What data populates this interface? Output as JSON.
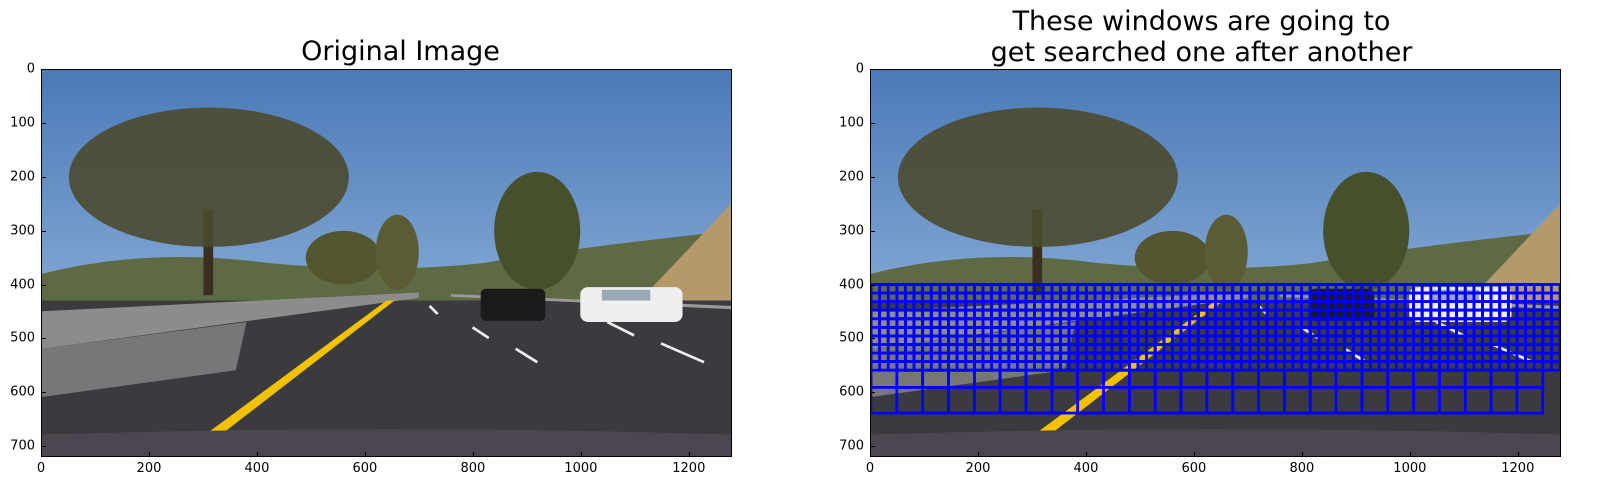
{
  "panels": [
    {
      "title": "Original Image",
      "xticks": [
        "0",
        "200",
        "400",
        "600",
        "800",
        "1000",
        "1200"
      ],
      "yticks": [
        "0",
        "100",
        "200",
        "300",
        "400",
        "500",
        "600",
        "700"
      ],
      "show_windows": false
    },
    {
      "title": "These windows are going to\nget searched one after another",
      "xticks": [
        "0",
        "200",
        "400",
        "600",
        "800",
        "1000",
        "1200"
      ],
      "yticks": [
        "0",
        "100",
        "200",
        "300",
        "400",
        "500",
        "600",
        "700"
      ],
      "show_windows": true
    }
  ],
  "image": {
    "width": 1280,
    "height": 720
  },
  "search_windows": {
    "color": "#0000ff",
    "rows": [
      {
        "y_start": 400,
        "y_stop": 650,
        "size": 96,
        "step": 48
      },
      {
        "y_start": 400,
        "y_stop": 560,
        "size": 64,
        "step": 16
      }
    ]
  },
  "colors": {
    "sky_top": "#4a7ab8",
    "sky_bottom": "#a9c6e6",
    "road": "#3b3b3f",
    "lane_yellow": "#f2c200",
    "lane_white": "#f0f0f0",
    "barrier": "#8c8c8c",
    "tree": "#4b4a2e",
    "hill": "#b49a6a",
    "car_dark": "#1a1a1a",
    "car_white": "#eeeeee"
  }
}
